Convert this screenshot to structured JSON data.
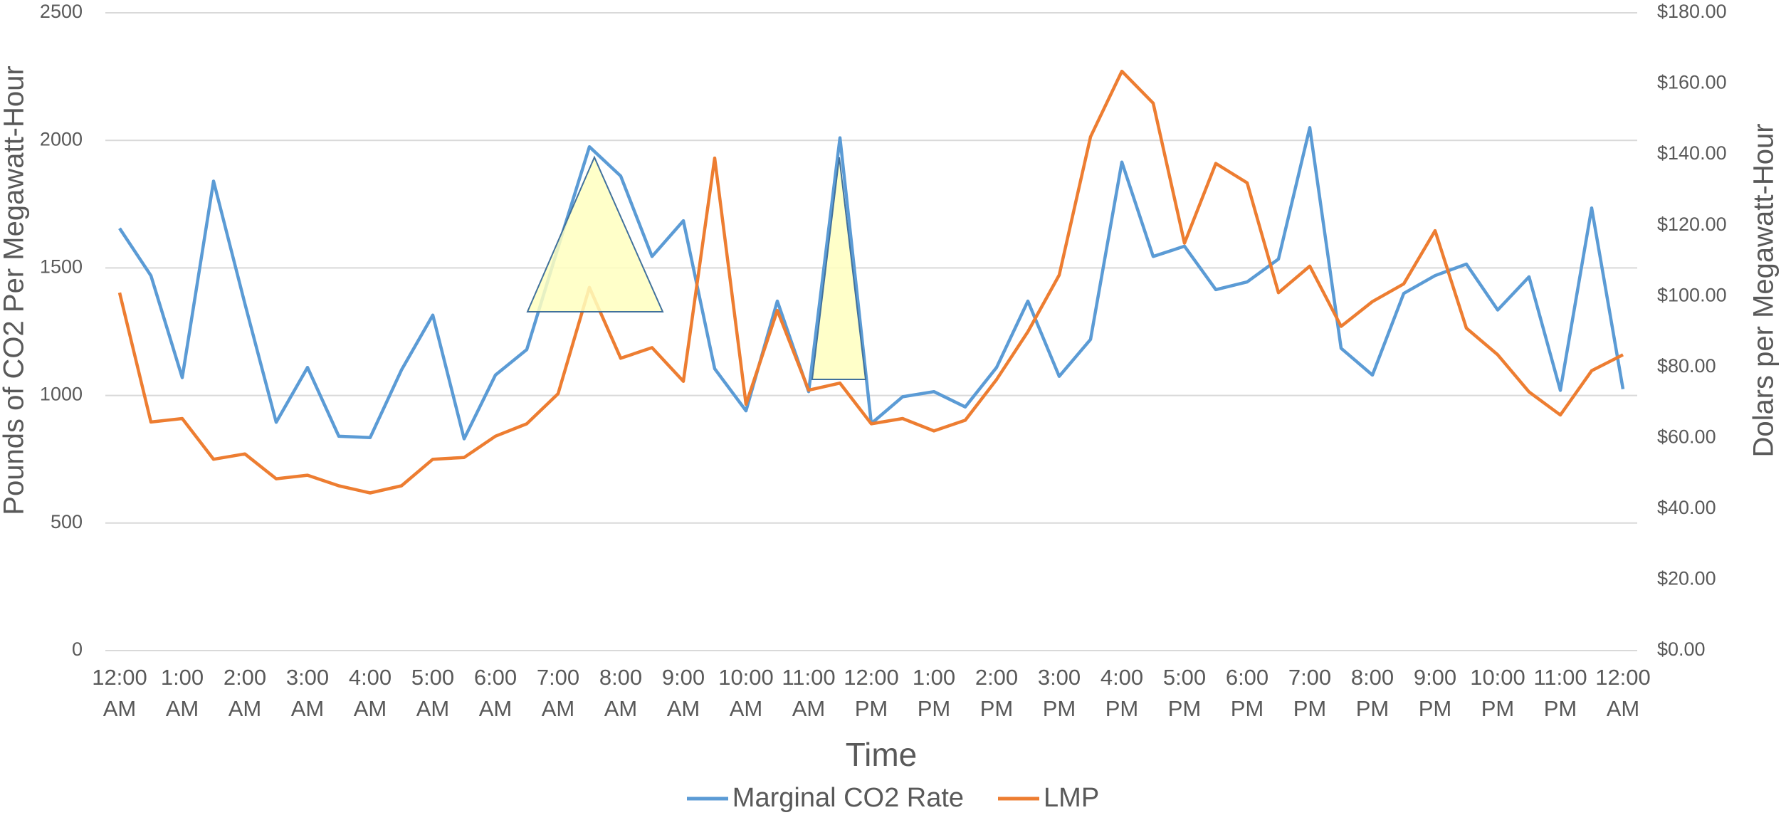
{
  "chart_data": {
    "type": "line",
    "xlabel": "Time",
    "ylabel": "Pounds of CO2 Per Megawatt-Hour",
    "y2label": "Dolars per Megawatt-Hour",
    "categories": [
      "12:00 AM",
      null,
      "1:00 AM",
      null,
      "2:00 AM",
      null,
      "3:00 AM",
      null,
      "4:00 AM",
      null,
      "5:00 AM",
      null,
      "6:00 AM",
      null,
      "7:00 AM",
      null,
      "8:00 AM",
      null,
      "9:00 AM",
      null,
      "10:00 AM",
      null,
      "11:00 AM",
      null,
      "12:00 PM",
      null,
      "1:00 PM",
      null,
      "2:00 PM",
      null,
      "3:00 PM",
      null,
      "4:00 PM",
      null,
      "5:00 PM",
      null,
      "6:00 PM",
      null,
      "7:00 PM",
      null,
      "8:00 PM",
      null,
      "9:00 PM",
      null,
      "10:00 PM",
      null,
      "11:00 PM",
      null,
      "12:00 AM"
    ],
    "series": [
      {
        "name": "Marginal CO2 Rate",
        "color": "#5b9bd5",
        "values": [
          1655,
          1470,
          1070,
          1840,
          1360,
          895,
          1110,
          840,
          835,
          1100,
          1315,
          830,
          1080,
          1180,
          1580,
          1975,
          1860,
          1545,
          1685,
          1105,
          940,
          1370,
          1015,
          2010,
          890,
          995,
          1015,
          955,
          1110,
          1370,
          1075,
          1220,
          1915,
          1545,
          1585,
          1415,
          1445,
          1535,
          2050,
          1185,
          1080,
          1400,
          1470,
          1515,
          1335,
          1465,
          1020,
          1735,
          1025
        ]
      },
      {
        "name": "LMP",
        "color": "#ed7d31",
        "axis": "y2",
        "values": [
          101,
          64.5,
          65.5,
          54,
          55.5,
          48.5,
          49.5,
          46.5,
          44.5,
          46.5,
          54,
          54.5,
          60.5,
          64,
          72.5,
          102.5,
          82.5,
          85.5,
          76,
          139,
          69.5,
          96,
          73.5,
          75.5,
          64,
          65.5,
          62,
          65,
          76.5,
          90,
          106,
          145,
          163.5,
          154.5,
          115,
          137.5,
          132,
          101,
          108.5,
          91.5,
          98.5,
          103.5,
          118.5,
          91,
          83.5,
          73,
          66.5,
          79,
          83.5
        ]
      }
    ],
    "ylim": [
      0,
      2500
    ],
    "yticks": [
      0,
      500,
      1000,
      1500,
      2000,
      2500
    ],
    "y2lim": [
      0,
      180
    ],
    "y2ticks": [
      {
        "value": 0,
        "label": "$0.00"
      },
      {
        "value": 20,
        "label": "$20.00"
      },
      {
        "value": 40,
        "label": "$40.00"
      },
      {
        "value": 60,
        "label": "$60.00"
      },
      {
        "value": 80,
        "label": "$80.00"
      },
      {
        "value": 100,
        "label": "$100.00"
      },
      {
        "value": 120,
        "label": "$120.00"
      },
      {
        "value": 140,
        "label": "$140.00"
      },
      {
        "value": 160,
        "label": "$160.00"
      },
      {
        "value": 180,
        "label": "$180.00"
      }
    ],
    "grid": true,
    "legend": "bottom"
  }
}
